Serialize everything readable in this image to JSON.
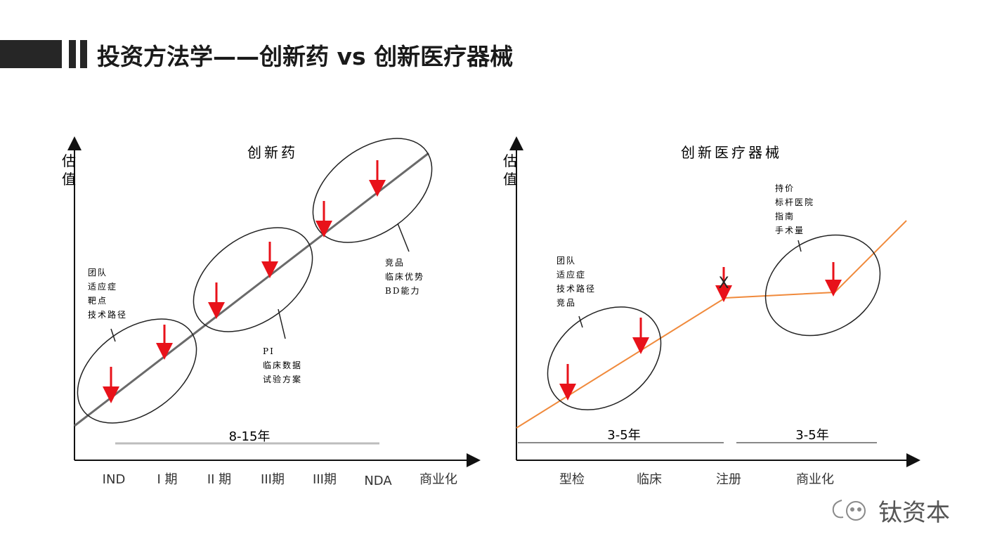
{
  "page": {
    "title": "投资方法学——创新药 vs 创新医疗器械"
  },
  "left_chart": {
    "title": "创新药",
    "y_label_top": "估",
    "y_label_bottom": "值",
    "x_labels": [
      "IND",
      "I 期",
      "II 期",
      "III期",
      "III期",
      "NDA",
      "商业化"
    ],
    "duration_label": "8-15年",
    "notes": {
      "early": [
        "团队",
        "适应症",
        "靶点",
        "技术路径"
      ],
      "mid": [
        "PI",
        "临床数据",
        "试验方案"
      ],
      "late": [
        "竞品",
        "临床优势",
        "BD能力"
      ]
    }
  },
  "right_chart": {
    "title": "创新医疗器械",
    "y_label_top": "估",
    "y_label_bottom": "值",
    "x_labels": [
      "型检",
      "临床",
      "注册",
      "商业化"
    ],
    "duration_label_1": "3-5年",
    "duration_label_2": "3-5年",
    "notes": {
      "early": [
        "团队",
        "适应症",
        "技术路径",
        "竞品"
      ],
      "late": [
        "持价",
        "标杆医院",
        "指南",
        "手术量"
      ]
    },
    "cross_mark": "X"
  },
  "watermark": {
    "text": "钛资本"
  },
  "colors": {
    "line_gray": "#6a6a6a",
    "line_orange": "#f08a3c",
    "arrow_red": "#e8121a",
    "bracket_gray": "#bdbdbd"
  }
}
